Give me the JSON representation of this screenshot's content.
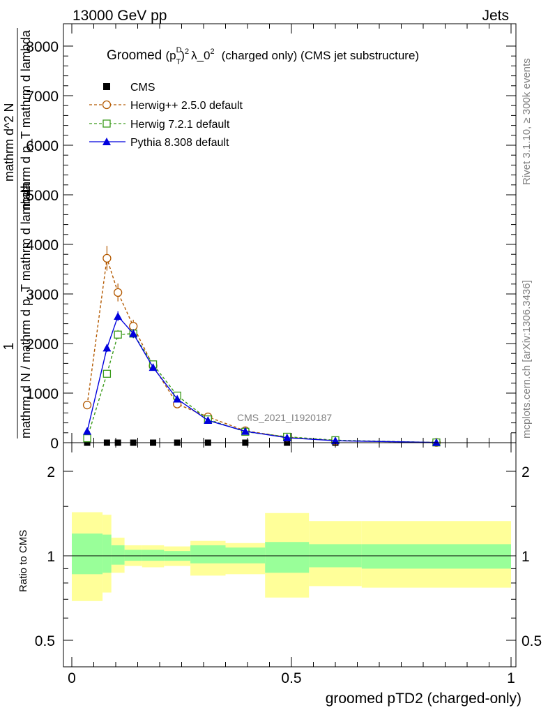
{
  "header": {
    "left": "13000 GeV pp",
    "right": "Jets"
  },
  "side_text": {
    "rivet": "Rivet 3.1.10, ≥ 300k events",
    "site": "mcplots.cern.ch [arXiv:1306.3436]"
  },
  "watermark": "CMS_2021_I1920187",
  "colors": {
    "cms": "#000000",
    "herwig25": "#b35900",
    "herwig72": "#3a9a1a",
    "pythia": "#0000dd",
    "band_inner": "#99ff99",
    "band_outer": "#ffff99"
  },
  "chart_data": [
    {
      "type": "line",
      "panel": "main",
      "title": "Groomed (p_T^D)^2 λ_0^2 (charged only) (CMS jet substructure)",
      "title_parts": {
        "prefix": "Groomed",
        "p": "(p",
        "sub_T": "T",
        "sup_D": "D",
        "close": ")",
        "sup_2a": "2",
        "lambda": "λ_0",
        "sup_2b": "2",
        "suffix": "(charged only) (CMS jet substructure)"
      },
      "ylabel": {
        "numerator_one": "1",
        "denominator": "mathrm d N / mathrm d p_T mathrm d lambda",
        "denominator_t": "T",
        "rhs_numerator": "mathrm d^2 N",
        "rhs_denominator": "mathrm d p_T mathrm d lambda",
        "rhs_t": "T"
      },
      "xlim": [
        -0.02,
        1.0
      ],
      "ylim": [
        0,
        8500
      ],
      "yticks": [
        0,
        1000,
        2000,
        3000,
        4000,
        5000,
        6000,
        7000,
        8000
      ],
      "ytick_labels": [
        "0",
        "1000",
        "2000",
        "3000",
        "4000",
        "5000",
        "6000",
        "7000",
        "8000"
      ],
      "legend": [
        "CMS",
        "Herwig++ 2.5.0 default",
        "Herwig 7.2.1 default",
        "Pythia 8.308 default"
      ],
      "series": [
        {
          "name": "CMS",
          "key": "cms",
          "x": [
            0.035,
            0.08,
            0.105,
            0.14,
            0.185,
            0.24,
            0.31,
            0.395,
            0.49,
            0.6,
            0.83
          ],
          "y": [
            0,
            0,
            0,
            0,
            0,
            0,
            0,
            0,
            0,
            0,
            0
          ]
        },
        {
          "name": "Herwig++ 2.5.0 default",
          "key": "herwig25",
          "x": [
            0.035,
            0.08,
            0.105,
            0.14,
            0.185,
            0.24,
            0.31,
            0.395,
            0.49,
            0.6,
            0.83
          ],
          "y": [
            760,
            3720,
            3030,
            2350,
            1550,
            780,
            520,
            240,
            110,
            40,
            5
          ],
          "err": [
            60,
            250,
            180,
            130,
            90,
            60,
            40,
            25,
            15,
            8,
            2
          ]
        },
        {
          "name": "Herwig 7.2.1 default",
          "key": "herwig72",
          "x": [
            0.035,
            0.08,
            0.105,
            0.14,
            0.185,
            0.24,
            0.31,
            0.395,
            0.49,
            0.6,
            0.83
          ],
          "y": [
            90,
            1390,
            2180,
            2200,
            1580,
            950,
            470,
            220,
            120,
            50,
            5
          ],
          "err": [
            15,
            70,
            90,
            90,
            70,
            50,
            30,
            20,
            12,
            6,
            2
          ]
        },
        {
          "name": "Pythia 8.308 default",
          "key": "pythia",
          "x": [
            0.035,
            0.08,
            0.105,
            0.14,
            0.185,
            0.24,
            0.31,
            0.395,
            0.49,
            0.6,
            0.83
          ],
          "y": [
            230,
            1910,
            2550,
            2200,
            1520,
            880,
            450,
            230,
            100,
            40,
            5
          ],
          "err": [
            20,
            80,
            100,
            90,
            70,
            50,
            30,
            20,
            12,
            6,
            2
          ]
        }
      ]
    },
    {
      "type": "area",
      "panel": "ratio",
      "ylabel": "Ratio to CMS",
      "xlabel": "groomed pTD2 (charged-only)",
      "xlim": [
        -0.02,
        1.0
      ],
      "ylim": [
        0.375,
        2.3
      ],
      "yticks": [
        0.5,
        1,
        2
      ],
      "ytick_labels": [
        "0.5",
        "1",
        "2"
      ],
      "xticks": [
        0,
        0.5,
        1
      ],
      "xtick_labels": [
        "0",
        "0.5",
        "1"
      ],
      "bins": [
        {
          "lo": 0.0,
          "hi": 0.07,
          "in_lo": 0.86,
          "in_hi": 1.2,
          "out_lo": 0.69,
          "out_hi": 1.43
        },
        {
          "lo": 0.07,
          "hi": 0.09,
          "in_lo": 0.87,
          "in_hi": 1.19,
          "out_lo": 0.74,
          "out_hi": 1.4
        },
        {
          "lo": 0.09,
          "hi": 0.12,
          "in_lo": 0.93,
          "in_hi": 1.09,
          "out_lo": 0.87,
          "out_hi": 1.16
        },
        {
          "lo": 0.12,
          "hi": 0.16,
          "in_lo": 0.96,
          "in_hi": 1.05,
          "out_lo": 0.92,
          "out_hi": 1.09
        },
        {
          "lo": 0.16,
          "hi": 0.21,
          "in_lo": 0.96,
          "in_hi": 1.05,
          "out_lo": 0.91,
          "out_hi": 1.09
        },
        {
          "lo": 0.21,
          "hi": 0.27,
          "in_lo": 0.96,
          "in_hi": 1.04,
          "out_lo": 0.92,
          "out_hi": 1.08
        },
        {
          "lo": 0.27,
          "hi": 0.35,
          "in_lo": 0.94,
          "in_hi": 1.09,
          "out_lo": 0.85,
          "out_hi": 1.13
        },
        {
          "lo": 0.35,
          "hi": 0.44,
          "in_lo": 0.94,
          "in_hi": 1.07,
          "out_lo": 0.86,
          "out_hi": 1.11
        },
        {
          "lo": 0.44,
          "hi": 0.54,
          "in_lo": 0.87,
          "in_hi": 1.12,
          "out_lo": 0.71,
          "out_hi": 1.42
        },
        {
          "lo": 0.54,
          "hi": 0.66,
          "in_lo": 0.91,
          "in_hi": 1.1,
          "out_lo": 0.78,
          "out_hi": 1.33
        },
        {
          "lo": 0.66,
          "hi": 1.0,
          "in_lo": 0.9,
          "in_hi": 1.1,
          "out_lo": 0.77,
          "out_hi": 1.33
        }
      ]
    }
  ]
}
